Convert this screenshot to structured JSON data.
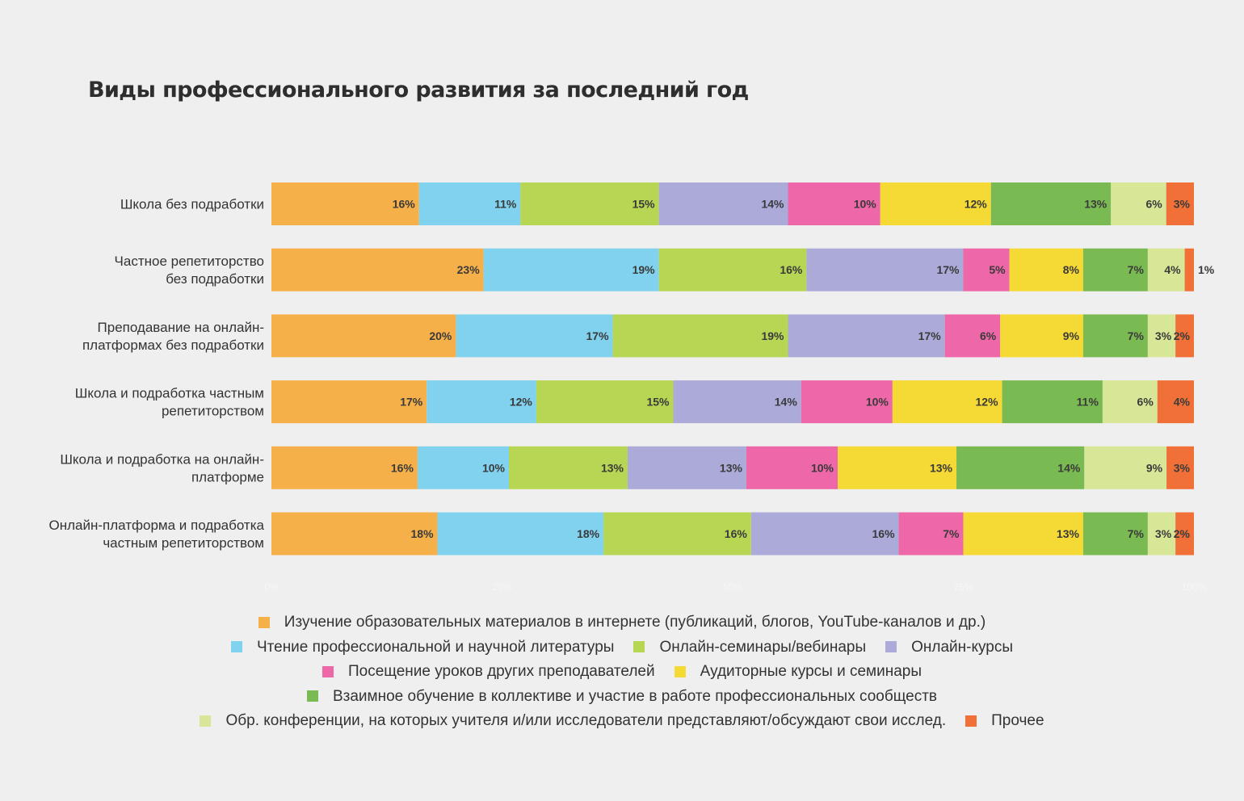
{
  "chart_data": {
    "type": "bar",
    "orientation": "horizontal",
    "stacked": true,
    "title": "Виды профессионального развития за последний год",
    "xlabel": "",
    "ylabel": "",
    "xlim": [
      0,
      100
    ],
    "x_ticks": [
      "0%",
      "25%",
      "50%",
      "75%",
      "100%"
    ],
    "grid": false,
    "legend_position": "bottom",
    "categories": [
      "Школа без подработки",
      "Частное репетиторство без подработки",
      "Преподавание на онлайн-платформах без подработки",
      "Школа и подработка частным репетиторством",
      "Школа и подработка на онлайн-платформе",
      "Онлайн-платформа и подработка частным репетиторством"
    ],
    "category_lines": [
      [
        "Школа без подработки"
      ],
      [
        "Частное репетиторство",
        "без подработки"
      ],
      [
        "Преподавание на онлайн-",
        "платформах без подработки"
      ],
      [
        "Школа и подработка частным",
        "репетиторством"
      ],
      [
        "Школа и подработка на онлайн-",
        "платформе"
      ],
      [
        "Онлайн-платформа и подработка",
        "частным репетиторством"
      ]
    ],
    "series": [
      {
        "name": "Изучение образовательных материалов в интернете (публикаций, блогов, YouTube-каналов и др.)",
        "color": "#f5b04a",
        "values": [
          16,
          23,
          20,
          17,
          16,
          18
        ]
      },
      {
        "name": "Чтение профессиональной и научной литературы",
        "color": "#80d2ee",
        "values": [
          11,
          19,
          17,
          12,
          10,
          18
        ]
      },
      {
        "name": "Онлайн-семинары/вебинары",
        "color": "#b7d654",
        "values": [
          15,
          16,
          19,
          15,
          13,
          16
        ]
      },
      {
        "name": "Онлайн-курсы",
        "color": "#abaad9",
        "values": [
          14,
          17,
          17,
          14,
          13,
          16
        ]
      },
      {
        "name": "Посещение уроков других преподавателей",
        "color": "#ee67a8",
        "values": [
          10,
          5,
          6,
          10,
          10,
          7
        ]
      },
      {
        "name": "Аудиторные курсы и семинары",
        "color": "#f5d934",
        "values": [
          12,
          8,
          9,
          12,
          13,
          13
        ]
      },
      {
        "name": "Взаимное обучение в коллективе и участие в работе профессиональных сообществ",
        "color": "#7aba52",
        "values": [
          13,
          7,
          7,
          11,
          14,
          7
        ]
      },
      {
        "name": "Обр. конференции, на которых учителя и/или исследователи представляют/обсуждают свои исслед.",
        "color": "#d7e697",
        "values": [
          6,
          4,
          3,
          6,
          9,
          3
        ]
      },
      {
        "name": "Прочее",
        "color": "#f07038",
        "values": [
          3,
          1,
          2,
          4,
          3,
          2
        ]
      }
    ],
    "value_suffix": "%"
  },
  "legend_rows": [
    [
      0
    ],
    [
      1,
      2,
      3
    ],
    [
      4,
      5
    ],
    [
      6
    ],
    [
      7,
      8
    ]
  ]
}
